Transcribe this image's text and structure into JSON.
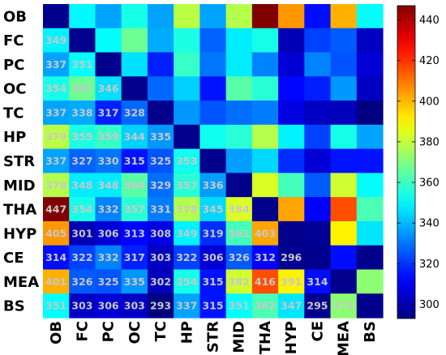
{
  "chart_data": {
    "type": "heatmap",
    "title": "",
    "xlabel": "",
    "ylabel": "",
    "rows": [
      "OB",
      "FC",
      "PC",
      "OC",
      "TC",
      "HP",
      "STR",
      "MID",
      "THA",
      "HYP",
      "CE",
      "MEA",
      "BS"
    ],
    "cols": [
      "OB",
      "FC",
      "PC",
      "OC",
      "TC",
      "HP",
      "STR",
      "MID",
      "THA",
      "HYP",
      "CE",
      "MEA",
      "BS"
    ],
    "values": [
      [
        295,
        350,
        337,
        354,
        337,
        379,
        337,
        378,
        447,
        405,
        314,
        401,
        351
      ],
      [
        349,
        295,
        351,
        367,
        338,
        355,
        327,
        348,
        354,
        301,
        322,
        326,
        303
      ],
      [
        337,
        351,
        295,
        346,
        317,
        359,
        330,
        348,
        332,
        306,
        332,
        325,
        306
      ],
      [
        354,
        367,
        346,
        295,
        328,
        344,
        315,
        364,
        357,
        313,
        317,
        335,
        303
      ],
      [
        337,
        338,
        317,
        328,
        295,
        335,
        325,
        329,
        331,
        308,
        303,
        302,
        293
      ],
      [
        379,
        355,
        359,
        344,
        335,
        295,
        353,
        357,
        378,
        349,
        322,
        354,
        337
      ],
      [
        337,
        327,
        330,
        315,
        325,
        353,
        295,
        336,
        345,
        319,
        306,
        315,
        315
      ],
      [
        378,
        348,
        348,
        364,
        329,
        357,
        336,
        295,
        384,
        361,
        326,
        382,
        351
      ],
      [
        447,
        354,
        332,
        357,
        331,
        378,
        345,
        384,
        295,
        403,
        312,
        416,
        362
      ],
      [
        405,
        301,
        306,
        313,
        308,
        349,
        319,
        361,
        403,
        295,
        296,
        391,
        347
      ],
      [
        314,
        322,
        332,
        317,
        303,
        322,
        306,
        326,
        312,
        296,
        295,
        314,
        295
      ],
      [
        401,
        326,
        325,
        335,
        302,
        354,
        315,
        382,
        416,
        391,
        314,
        295,
        372
      ],
      [
        351,
        303,
        306,
        303,
        293,
        337,
        315,
        351,
        362,
        347,
        295,
        372,
        295
      ]
    ],
    "labels_lower_triangle": [
      [
        "349"
      ],
      [
        "337",
        "351"
      ],
      [
        "354",
        "367",
        "346"
      ],
      [
        "337",
        "338",
        "317",
        "328"
      ],
      [
        "379",
        "355",
        "359",
        "344",
        "335"
      ],
      [
        "337",
        "327",
        "330",
        "315",
        "325",
        "353"
      ],
      [
        "378",
        "348",
        "348",
        "364",
        "329",
        "357",
        "336"
      ],
      [
        "447",
        "354",
        "332",
        "357",
        "331",
        "378",
        "345",
        "384"
      ],
      [
        "405",
        "301",
        "306",
        "313",
        "308",
        "349",
        "319",
        "361",
        "403"
      ],
      [
        "314",
        "322",
        "332",
        "317",
        "303",
        "322",
        "306",
        "326",
        "312",
        "296"
      ],
      [
        "401",
        "326",
        "325",
        "335",
        "302",
        "354",
        "315",
        "382",
        "416",
        "391",
        "314"
      ],
      [
        "351",
        "303",
        "306",
        "303",
        "293",
        "337",
        "315",
        "351",
        "362",
        "347",
        "295",
        "372"
      ]
    ],
    "colorbar": {
      "min": 293,
      "max": 447,
      "ticks": [
        300,
        320,
        340,
        360,
        380,
        400,
        420,
        440
      ],
      "colormap": "jet"
    },
    "grid": false,
    "legend": "colorbar-right"
  }
}
